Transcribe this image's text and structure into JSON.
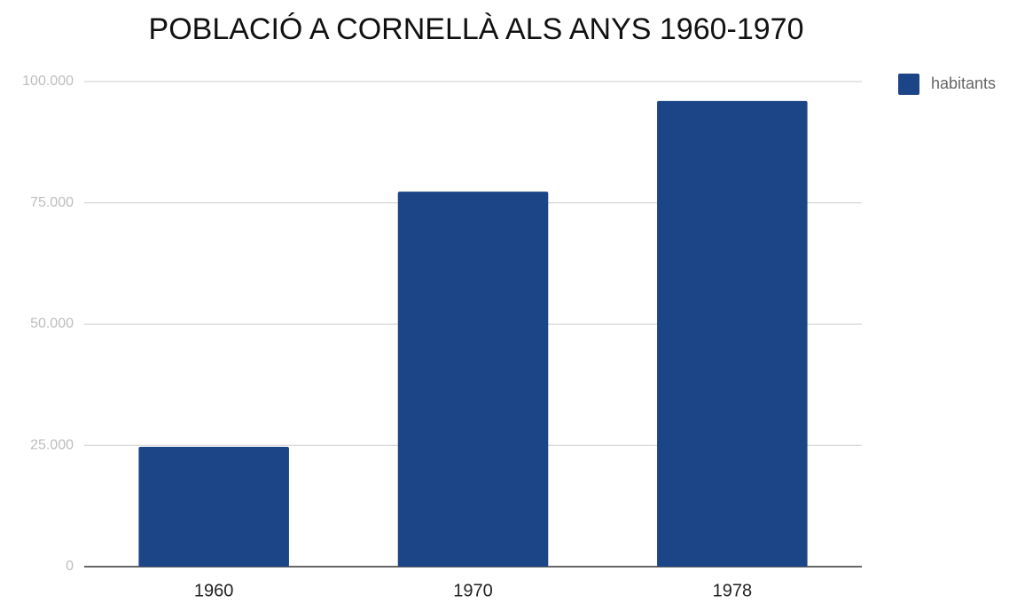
{
  "chart_data": {
    "type": "bar",
    "title": "POBLACIÓ A CORNELLÀ ALS ANYS 1960-1970",
    "categories": [
      "1960",
      "1970",
      "1978"
    ],
    "series": [
      {
        "name": "habitants",
        "color": "#1c4587",
        "values": [
          24700,
          77300,
          96000
        ]
      }
    ],
    "ylim": [
      0,
      100000
    ],
    "yticks": [
      0,
      {
        "value": 25000,
        "label": "25.000"
      },
      {
        "value": 50000,
        "label": "50.000"
      },
      {
        "value": 75000,
        "label": "75.000"
      },
      {
        "value": 100000,
        "label": "100.000"
      }
    ],
    "grid": true,
    "legend": "right"
  }
}
